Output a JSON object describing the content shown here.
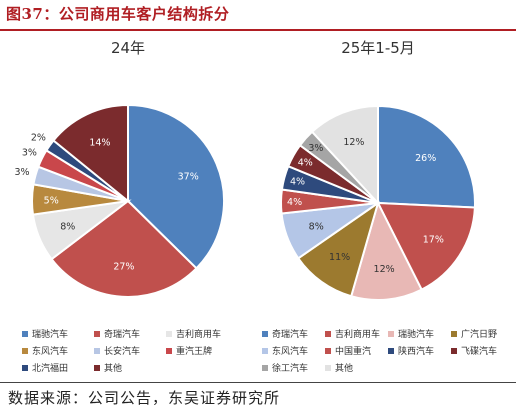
{
  "figure_title": "图37：公司商用车客户结构拆分",
  "source": "数据来源：公司公告，东吴证券研究所",
  "chart_data": [
    {
      "type": "pie",
      "title": "24年",
      "slices": [
        {
          "name": "瑞驰汽车",
          "value": 37,
          "label": "37%",
          "color": "#4f81bd",
          "label_color": "#ffffff"
        },
        {
          "name": "奇瑞汽车",
          "value": 27,
          "label": "27%",
          "color": "#c0504d",
          "label_color": "#ffffff"
        },
        {
          "name": "吉利商用车",
          "value": 8,
          "label": "8%",
          "color": "#e6e6e6",
          "label_color": "#333333"
        },
        {
          "name": "东风汽车",
          "value": 5,
          "label": "5%",
          "color": "#b8893e",
          "label_color": "#ffffff"
        },
        {
          "name": "长安汽车",
          "value": 3,
          "label": "3%",
          "color": "#b7c6e4",
          "label_color": "#333333"
        },
        {
          "name": "重汽王牌",
          "value": 3,
          "label": "3%",
          "color": "#c9474b",
          "label_color": "#333333"
        },
        {
          "name": "北汽福田",
          "value": 2,
          "label": "2%",
          "color": "#2e4a7d",
          "label_color": "#333333"
        },
        {
          "name": "其他",
          "value": 14,
          "label": "14%",
          "color": "#7b2b2d",
          "label_color": "#ffffff"
        }
      ],
      "legend": [
        "瑞驰汽车",
        "奇瑞汽车",
        "吉利商用车",
        "东风汽车",
        "长安汽车",
        "重汽王牌",
        "北汽福田",
        "其他"
      ]
    },
    {
      "type": "pie",
      "title": "25年1-5月",
      "slices": [
        {
          "name": "奇瑞汽车",
          "value": 26,
          "label": "26%",
          "color": "#4f81bd",
          "label_color": "#ffffff"
        },
        {
          "name": "吉利商用车",
          "value": 17,
          "label": "17%",
          "color": "#c0504d",
          "label_color": "#ffffff"
        },
        {
          "name": "瑞驰汽车",
          "value": 12,
          "label": "12%",
          "color": "#e8b8b5",
          "label_color": "#333333"
        },
        {
          "name": "广汽日野",
          "value": 11,
          "label": "11%",
          "color": "#9c7a2f",
          "label_color": "#333333"
        },
        {
          "name": "东风汽车",
          "value": 8,
          "label": "8%",
          "color": "#b4c6e7",
          "label_color": "#333333"
        },
        {
          "name": "中国重汽",
          "value": 4,
          "label": "4%",
          "color": "#c0504d",
          "label_color": "#ffffff"
        },
        {
          "name": "陕西汽车",
          "value": 4,
          "label": "4%",
          "color": "#2e4a7d",
          "label_color": "#ffffff"
        },
        {
          "name": "飞碟汽车",
          "value": 4,
          "label": "4%",
          "color": "#7b2b2d",
          "label_color": "#ffffff"
        },
        {
          "name": "徐工汽车",
          "value": 3,
          "label": "3%",
          "color": "#a5a5a5",
          "label_color": "#333333"
        },
        {
          "name": "其他",
          "value": 12,
          "label": "12%",
          "color": "#e2e2e2",
          "label_color": "#333333"
        }
      ],
      "legend": [
        "奇瑞汽车",
        "吉利商用车",
        "瑞驰汽车",
        "广汽日野",
        "东风汽车",
        "中国重汽",
        "陕西汽车",
        "飞碟汽车",
        "徐工汽车",
        "其他"
      ]
    }
  ]
}
